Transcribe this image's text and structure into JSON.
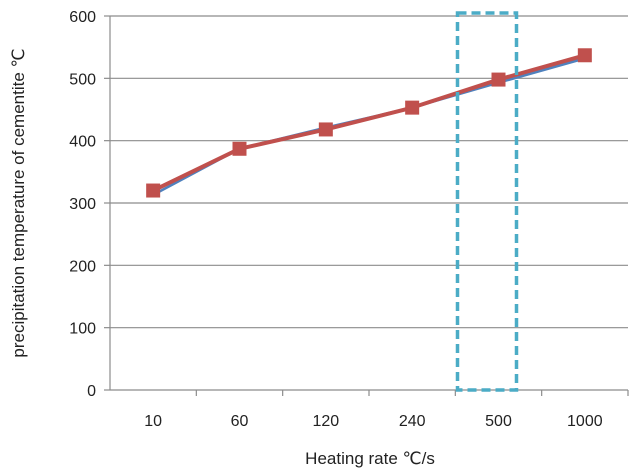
{
  "chart_data": {
    "type": "line",
    "title": "",
    "xlabel": "Heating rate ℃/s",
    "ylabel": "precipitation temperature of cementite ℃",
    "categories": [
      "10",
      "60",
      "120",
      "240",
      "500",
      "1000"
    ],
    "ylim": [
      0,
      600
    ],
    "yticks": [
      0,
      100,
      200,
      300,
      400,
      500,
      600
    ],
    "grid": "horizontal",
    "legend": "none",
    "series": [
      {
        "values": [
          313,
          387,
          421,
          453,
          493,
          532
        ],
        "color": "#4F81BD",
        "marker": "none"
      },
      {
        "values": [
          320,
          387,
          418,
          453,
          498,
          537
        ],
        "color": "#C0504D",
        "marker": "square"
      }
    ],
    "highlight": {
      "category": "500",
      "style": "dashed-box",
      "color": "#4BACC6"
    }
  }
}
